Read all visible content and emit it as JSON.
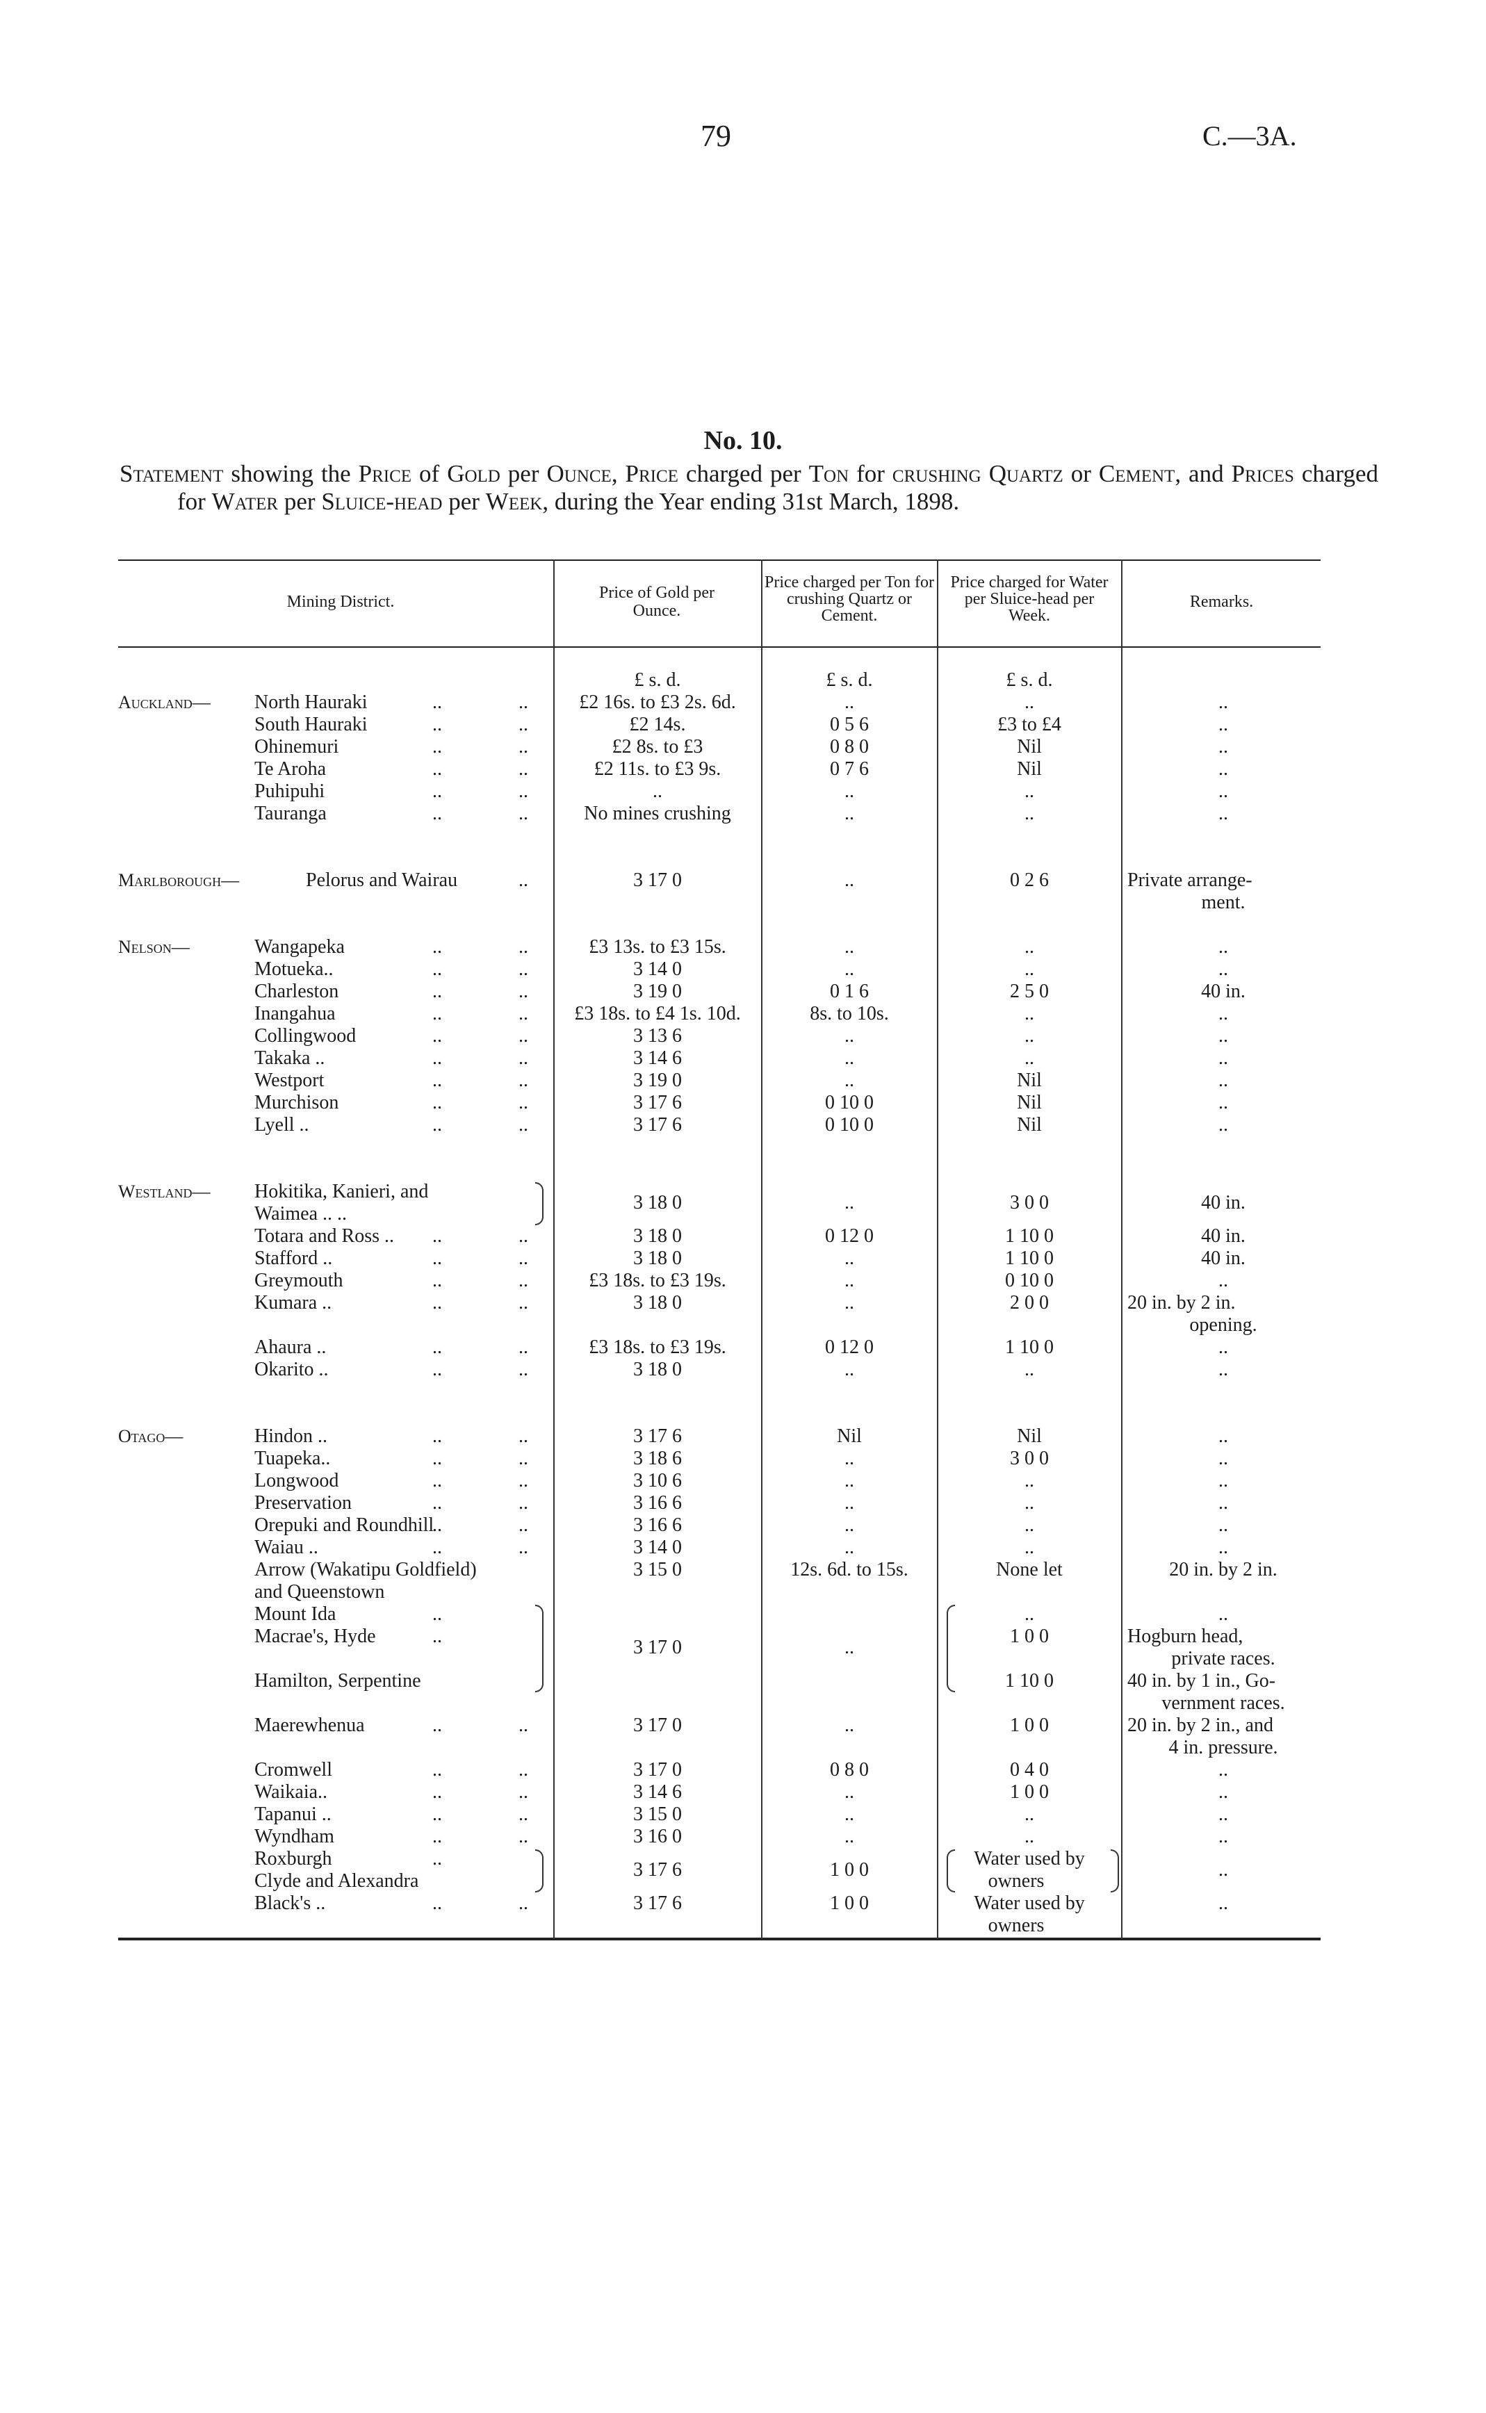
{
  "header": {
    "page_number": "79",
    "doc_ref": "C.—3A."
  },
  "title": "No. 10.",
  "statement": [
    {
      "t": "Statement",
      "sc": true
    },
    {
      "t": " showing the "
    },
    {
      "t": "Price",
      "sc": true
    },
    {
      "t": " of "
    },
    {
      "t": "Gold",
      "sc": true
    },
    {
      "t": " per "
    },
    {
      "t": "Ounce",
      "sc": true
    },
    {
      "t": ", "
    },
    {
      "t": "Price",
      "sc": true
    },
    {
      "t": " charged per "
    },
    {
      "t": "Ton",
      "sc": true
    },
    {
      "t": " for "
    },
    {
      "t": "crushing",
      "sc": true
    },
    {
      "t": " "
    },
    {
      "t": "Quartz",
      "sc": true
    },
    {
      "t": " or "
    },
    {
      "t": "Cement",
      "sc": true
    },
    {
      "t": ", and "
    },
    {
      "t": "Prices",
      "sc": true
    },
    {
      "t": " charged for "
    },
    {
      "t": "Water",
      "sc": true
    },
    {
      "t": " per "
    },
    {
      "t": "Sluice-head",
      "sc": true
    },
    {
      "t": " per "
    },
    {
      "t": "Week",
      "sc": true
    },
    {
      "t": ", during the Year ending 31st March, 1898."
    }
  ],
  "columns": {
    "district": "Mining District.",
    "gold": "Price of Gold per Ounce.",
    "crushing": "Price charged per Ton for crushing Quartz or Cement.",
    "water": "Price charged for Water per Sluice-head per Week.",
    "remarks": "Remarks."
  },
  "units": {
    "gold": "£ s. d.",
    "crushing": "£ s. d.",
    "water": "£ s. d."
  },
  "leader": "..",
  "rows": [
    {
      "r": "Auckland—",
      "n": "North Hauraki",
      "g": "£2 16s. to £3 2s. 6d.",
      "c": "..",
      "w": "..",
      "m": ".."
    },
    {
      "n": "South Hauraki",
      "g": "£2 14s.",
      "c": "0  5  6",
      "w": "£3 to £4",
      "m": ".."
    },
    {
      "n": "Ohinemuri",
      "g": "£2 8s. to £3",
      "c": "0  8  0",
      "w": "Nil",
      "m": ".."
    },
    {
      "n": "Te Aroha",
      "g": "£2 11s. to £3 9s.",
      "c": "0  7  6",
      "w": "Nil",
      "m": ".."
    },
    {
      "n": "Puhipuhi",
      "g": "..",
      "c": "..",
      "w": "..",
      "m": ".."
    },
    {
      "n": "Tauranga",
      "g": "No mines crushing",
      "c": "..",
      "w": "..",
      "m": ".."
    },
    {
      "r": "Marlborough—",
      "n": "Pelorus and Wairau",
      "inline": true,
      "g": "3 17  0",
      "c": "..",
      "w": "0  2  6",
      "m": "Private   arrange-",
      "m2": "ment."
    },
    {
      "r": "Nelson—",
      "n": "Wangapeka",
      "g": "£3 13s. to £3 15s.",
      "c": "..",
      "w": "..",
      "m": ".."
    },
    {
      "n": "Motueka..",
      "g": "3 14  0",
      "c": "..",
      "w": "..",
      "m": ".."
    },
    {
      "n": "Charleston",
      "g": "3 19  0",
      "c": "0  1  6",
      "w": "2  5  0",
      "m": "40 in."
    },
    {
      "n": "Inangahua",
      "g": "£3 18s. to £4 1s. 10d.",
      "c": "8s. to 10s.",
      "w": "..",
      "m": ".."
    },
    {
      "n": "Collingwood",
      "g": "3 13  6",
      "c": "..",
      "w": "..",
      "m": ".."
    },
    {
      "n": "Takaka ..",
      "g": "3 14  6",
      "c": "..",
      "w": "..",
      "m": ".."
    },
    {
      "n": "Westport",
      "g": "3 19  0",
      "c": "..",
      "w": "Nil",
      "m": ".."
    },
    {
      "n": "Murchison",
      "g": "3 17  6",
      "c": "0 10  0",
      "w": "Nil",
      "m": ".."
    },
    {
      "n": "Lyell  ..",
      "g": "3 17  6",
      "c": "0 10  0",
      "w": "Nil",
      "m": ".."
    },
    {
      "r": "Westland—",
      "n": "Hokitika, Kanieri, and",
      "n2": "Waimea ..        ..",
      "g": "3 18  0",
      "c": "..",
      "w": "3  0  0",
      "m": "40 in."
    },
    {
      "n": "Totara and Ross ..",
      "g": "3 18  0",
      "c": "0 12  0",
      "w": "1 10  0",
      "m": "40 in."
    },
    {
      "n": "Stafford ..",
      "g": "3 18  0",
      "c": "..",
      "w": "1 10  0",
      "m": "40 in."
    },
    {
      "n": "Greymouth",
      "g": "£3 18s. to £3 19s.",
      "c": "..",
      "w": "0 10  0",
      "m": ".."
    },
    {
      "n": "Kumara ..",
      "g": "3 18  0",
      "c": "..",
      "w": "2  0  0",
      "m": "20 in.  by  2 in.",
      "m2": "opening."
    },
    {
      "n": "Ahaura ..",
      "g": "£3 18s. to £3 19s.",
      "c": "0 12  0",
      "w": "1 10  0",
      "m": ".."
    },
    {
      "n": "Okarito ..",
      "g": "3 18  0",
      "c": "..",
      "w": "..",
      "m": ".."
    },
    {
      "r": "Otago—",
      "n": "Hindon ..",
      "g": "3 17  6",
      "c": "Nil",
      "w": "Nil",
      "m": ".."
    },
    {
      "n": "Tuapeka..",
      "g": "3 18  6",
      "c": "..",
      "w": "3  0  0",
      "m": ".."
    },
    {
      "n": "Longwood",
      "g": "3 10  6",
      "c": "..",
      "w": "..",
      "m": ".."
    },
    {
      "n": "Preservation",
      "g": "3 16  6",
      "c": "..",
      "w": "..",
      "m": ".."
    },
    {
      "n": "Orepuki and Roundhill",
      "g": "3 16  6",
      "c": "..",
      "w": "..",
      "m": ".."
    },
    {
      "n": "Waiau  ..",
      "g": "3 14  0",
      "c": "..",
      "w": "..",
      "m": ".."
    },
    {
      "n": "Arrow (Wakatipu Goldfield)",
      "n2": "  and Queenstown",
      "g": "3 15  0",
      "c": "12s. 6d. to 15s.",
      "w": "None let",
      "m": "20 in. by 2 in."
    },
    {
      "n": "Mount Ida",
      "w": "..",
      "m": ".."
    },
    {
      "n": "Macrae's, Hyde",
      "g": "3 17  0",
      "c": "..",
      "w": "1  0  0",
      "m": "Hogburn   head,",
      "m2": "private races."
    },
    {
      "n": "Hamilton, Serpentine",
      "w": "1 10  0",
      "m": "40 in. by 1 in., Go-",
      "m2": "vernment races."
    },
    {
      "n": "Maerewhenua",
      "g": "3 17  0",
      "c": "..",
      "w": "1  0  0",
      "m": "20 in. by 2 in., and",
      "m2": "4 in. pressure."
    },
    {
      "n": "Cromwell",
      "g": "3 17  0",
      "c": "0  8  0",
      "w": "0  4  0",
      "m": ".."
    },
    {
      "n": "Waikaia..",
      "g": "3 14  6",
      "c": "..",
      "w": "1  0  0",
      "m": ".."
    },
    {
      "n": "Tapanui ..",
      "g": "3 15  0",
      "c": "..",
      "w": "..",
      "m": ".."
    },
    {
      "n": "Wyndham",
      "g": "3 16  0",
      "c": "..",
      "w": "..",
      "m": ".."
    },
    {
      "n": "Roxburgh",
      "g": "3 17  6",
      "c": "1  0  0",
      "w": "Water used by",
      "w2": "owners",
      "m": ".."
    },
    {
      "n": "Clyde and Alexandra"
    },
    {
      "n": "Black's ..",
      "g": "3 17  6",
      "c": "1  0  0",
      "w": "Water  used  by",
      "w2": "owners",
      "m": ".."
    }
  ]
}
